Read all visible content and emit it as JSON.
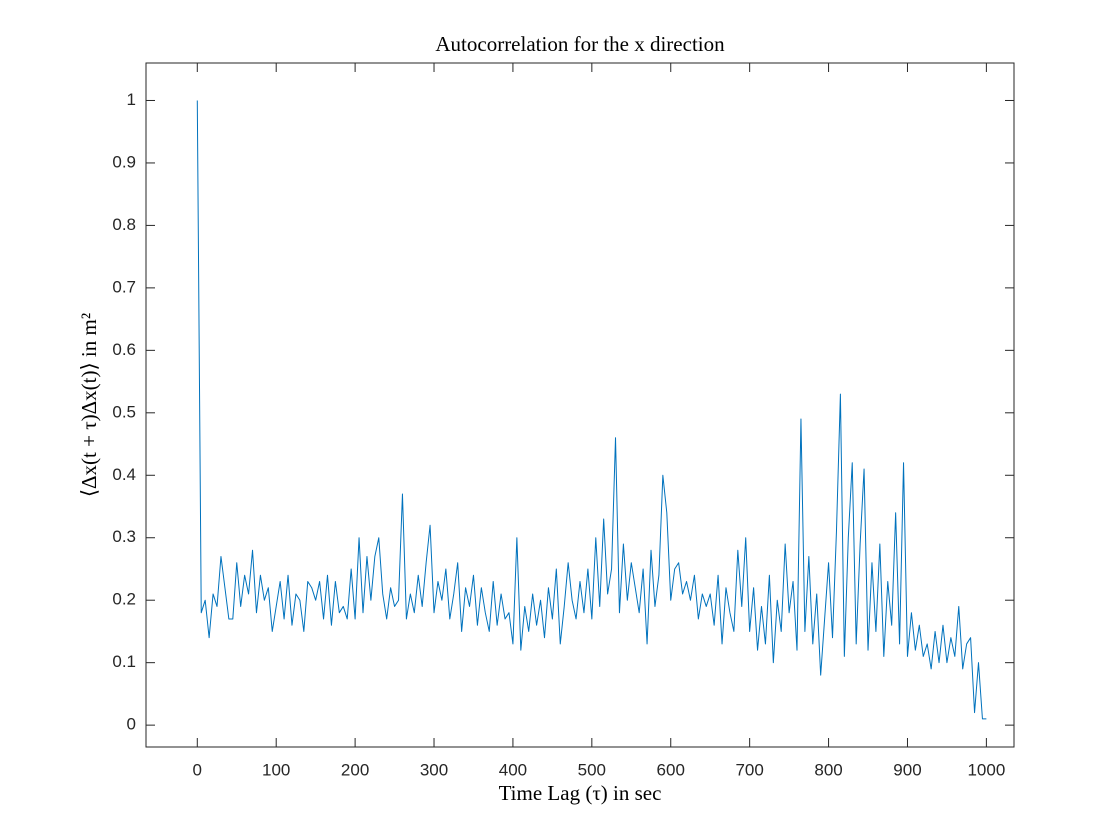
{
  "chart_data": {
    "type": "line",
    "title": "Autocorrelation for the x direction",
    "x_label": "Time Lag (τ) in sec",
    "y_label": "⟨Δx(t + τ)Δx(t)⟩ in m²",
    "x": [
      0,
      5,
      10,
      15,
      20,
      25,
      30,
      35,
      40,
      45,
      50,
      55,
      60,
      65,
      70,
      75,
      80,
      85,
      90,
      95,
      100,
      105,
      110,
      115,
      120,
      125,
      130,
      135,
      140,
      145,
      150,
      155,
      160,
      165,
      170,
      175,
      180,
      185,
      190,
      195,
      200,
      205,
      210,
      215,
      220,
      225,
      230,
      235,
      240,
      245,
      250,
      255,
      260,
      265,
      270,
      275,
      280,
      285,
      290,
      295,
      300,
      305,
      310,
      315,
      320,
      325,
      330,
      335,
      340,
      345,
      350,
      355,
      360,
      365,
      370,
      375,
      380,
      385,
      390,
      395,
      400,
      405,
      410,
      415,
      420,
      425,
      430,
      435,
      440,
      445,
      450,
      455,
      460,
      465,
      470,
      475,
      480,
      485,
      490,
      495,
      500,
      505,
      510,
      515,
      520,
      525,
      530,
      535,
      540,
      545,
      550,
      555,
      560,
      565,
      570,
      575,
      580,
      585,
      590,
      595,
      600,
      605,
      610,
      615,
      620,
      625,
      630,
      635,
      640,
      645,
      650,
      655,
      660,
      665,
      670,
      675,
      680,
      685,
      690,
      695,
      700,
      705,
      710,
      715,
      720,
      725,
      730,
      735,
      740,
      745,
      750,
      755,
      760,
      765,
      770,
      775,
      780,
      785,
      790,
      795,
      800,
      805,
      810,
      815,
      820,
      825,
      830,
      835,
      840,
      845,
      850,
      855,
      860,
      865,
      870,
      875,
      880,
      885,
      890,
      895,
      900,
      905,
      910,
      915,
      920,
      925,
      930,
      935,
      940,
      945,
      950,
      955,
      960,
      965,
      970,
      975,
      980,
      985,
      990,
      995,
      1000
    ],
    "series": [
      {
        "name": "autocorrelation",
        "color": "#0072bd",
        "values": [
          1,
          0.18,
          0.2,
          0.14,
          0.21,
          0.19,
          0.27,
          0.22,
          0.17,
          0.17,
          0.26,
          0.19,
          0.24,
          0.21,
          0.28,
          0.18,
          0.24,
          0.2,
          0.22,
          0.15,
          0.19,
          0.23,
          0.17,
          0.24,
          0.16,
          0.21,
          0.2,
          0.15,
          0.23,
          0.22,
          0.2,
          0.23,
          0.17,
          0.24,
          0.16,
          0.23,
          0.18,
          0.19,
          0.17,
          0.25,
          0.17,
          0.3,
          0.18,
          0.27,
          0.2,
          0.27,
          0.3,
          0.21,
          0.17,
          0.22,
          0.19,
          0.2,
          0.37,
          0.17,
          0.21,
          0.18,
          0.24,
          0.19,
          0.26,
          0.32,
          0.18,
          0.23,
          0.2,
          0.25,
          0.17,
          0.21,
          0.26,
          0.15,
          0.22,
          0.19,
          0.24,
          0.16,
          0.22,
          0.18,
          0.15,
          0.23,
          0.16,
          0.21,
          0.17,
          0.18,
          0.13,
          0.3,
          0.12,
          0.19,
          0.15,
          0.21,
          0.16,
          0.2,
          0.14,
          0.22,
          0.17,
          0.25,
          0.13,
          0.19,
          0.26,
          0.2,
          0.17,
          0.23,
          0.18,
          0.25,
          0.17,
          0.3,
          0.19,
          0.33,
          0.21,
          0.25,
          0.46,
          0.18,
          0.29,
          0.2,
          0.26,
          0.22,
          0.18,
          0.25,
          0.13,
          0.28,
          0.19,
          0.24,
          0.4,
          0.34,
          0.2,
          0.25,
          0.26,
          0.21,
          0.23,
          0.2,
          0.24,
          0.17,
          0.21,
          0.19,
          0.21,
          0.16,
          0.24,
          0.13,
          0.22,
          0.18,
          0.15,
          0.28,
          0.19,
          0.3,
          0.15,
          0.22,
          0.12,
          0.19,
          0.13,
          0.24,
          0.1,
          0.2,
          0.15,
          0.29,
          0.18,
          0.23,
          0.12,
          0.49,
          0.15,
          0.27,
          0.13,
          0.21,
          0.08,
          0.17,
          0.26,
          0.14,
          0.31,
          0.53,
          0.11,
          0.3,
          0.42,
          0.13,
          0.29,
          0.41,
          0.12,
          0.26,
          0.15,
          0.29,
          0.11,
          0.23,
          0.16,
          0.34,
          0.13,
          0.42,
          0.11,
          0.18,
          0.12,
          0.16,
          0.11,
          0.13,
          0.09,
          0.15,
          0.1,
          0.16,
          0.1,
          0.14,
          0.11,
          0.19,
          0.09,
          0.13,
          0.14,
          0.02,
          0.1,
          0.01,
          0.01
        ]
      }
    ],
    "xlim": [
      -65,
      1035
    ],
    "ylim": [
      -0.035,
      1.06
    ],
    "xticks": [
      0,
      100,
      200,
      300,
      400,
      500,
      600,
      700,
      800,
      900,
      1000
    ],
    "yticks": [
      0,
      0.1,
      0.2,
      0.3,
      0.4,
      0.5,
      0.6,
      0.7,
      0.8,
      0.9,
      1
    ],
    "grid": false
  }
}
